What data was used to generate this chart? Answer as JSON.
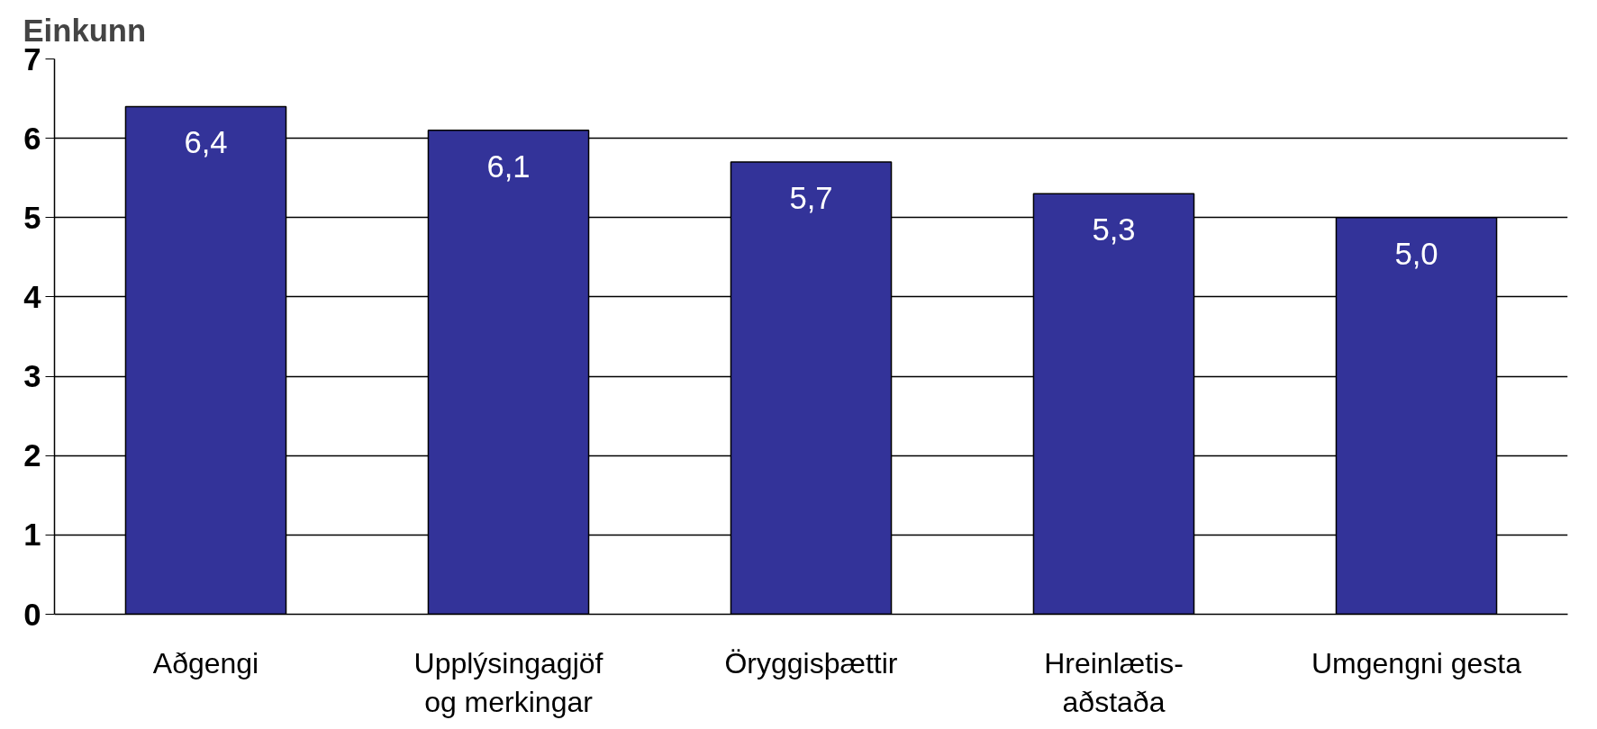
{
  "chart_data": {
    "type": "bar",
    "ylabel": "Einkunn",
    "categories": [
      "Aðgengi",
      "Upplýsingagjöf\nog merkingar",
      "Öryggisþættir",
      "Hreinlætis-\naðstaða",
      "Umgengni gesta"
    ],
    "values": [
      6.4,
      6.1,
      5.7,
      5.3,
      5.0
    ],
    "value_labels": [
      "6,4",
      "6,1",
      "5,7",
      "5,3",
      "5,0"
    ],
    "color": "#333399",
    "ylim": [
      0,
      7
    ],
    "yticks": [
      0,
      1,
      2,
      3,
      4,
      5,
      6,
      7
    ],
    "grid": "y"
  }
}
